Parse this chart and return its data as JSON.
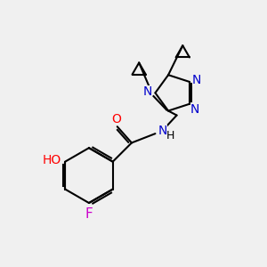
{
  "bg_color": "#f0f0f0",
  "bond_color": "#000000",
  "n_color": "#0000cc",
  "o_color": "#ff0000",
  "f_color": "#cc00cc",
  "line_width": 1.5,
  "font_size": 10,
  "fig_size": [
    3.0,
    3.0
  ],
  "dpi": 100,
  "xlim": [
    0,
    10
  ],
  "ylim": [
    0,
    10
  ]
}
